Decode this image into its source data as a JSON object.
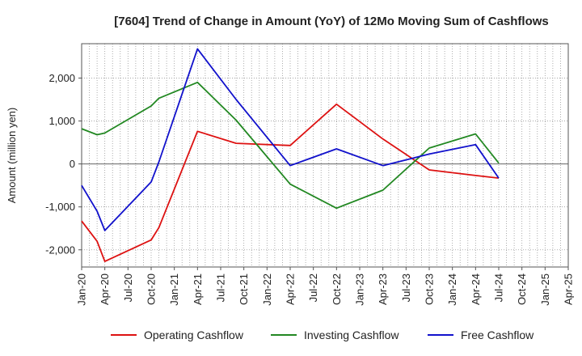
{
  "chart_data": {
    "type": "line",
    "title": "[7604]  Trend of Change in Amount (YoY) of 12Mo Moving Sum of Cashflows",
    "xlabel": "",
    "ylabel": "Amount (million yen)",
    "ylim": [
      -2400,
      2800
    ],
    "yticks": [
      {
        "value": 2000,
        "label": "2,000"
      },
      {
        "value": 1000,
        "label": "1,000"
      },
      {
        "value": 0,
        "label": "0"
      },
      {
        "value": -1000,
        "label": "-1,000"
      },
      {
        "value": -2000,
        "label": "-2,000"
      }
    ],
    "categories": [
      "Jan-20",
      "Apr-20",
      "Jul-20",
      "Oct-20",
      "Jan-21",
      "Apr-21",
      "Jul-21",
      "Oct-21",
      "Jan-22",
      "Apr-22",
      "Jul-22",
      "Oct-22",
      "Jan-23",
      "Apr-23",
      "Jul-23",
      "Oct-23",
      "Jan-24",
      "Apr-24",
      "Jul-24",
      "Oct-24",
      "Jan-25",
      "Apr-25"
    ],
    "grid": true,
    "legend_position": "bottom",
    "series": [
      {
        "name": "Operating Cashflow",
        "color": "#dd1111",
        "points": [
          [
            0,
            -1330
          ],
          [
            2,
            -1800
          ],
          [
            3,
            -2270
          ],
          [
            9,
            -1770
          ],
          [
            10,
            -1480
          ],
          [
            15,
            760
          ],
          [
            20,
            480
          ],
          [
            27,
            430
          ],
          [
            33,
            1390
          ],
          [
            39,
            580
          ],
          [
            45,
            -140
          ],
          [
            51,
            -270
          ],
          [
            54,
            -330
          ]
        ]
      },
      {
        "name": "Investing Cashflow",
        "color": "#228822",
        "points": [
          [
            0,
            820
          ],
          [
            2,
            680
          ],
          [
            3,
            720
          ],
          [
            9,
            1350
          ],
          [
            10,
            1530
          ],
          [
            15,
            1900
          ],
          [
            20,
            1020
          ],
          [
            27,
            -470
          ],
          [
            33,
            -1030
          ],
          [
            39,
            -610
          ],
          [
            45,
            370
          ],
          [
            51,
            700
          ],
          [
            54,
            20
          ]
        ]
      },
      {
        "name": "Free Cashflow",
        "color": "#1111cc",
        "points": [
          [
            0,
            -500
          ],
          [
            2,
            -1100
          ],
          [
            3,
            -1550
          ],
          [
            9,
            -420
          ],
          [
            10,
            50
          ],
          [
            15,
            2680
          ],
          [
            20,
            1500
          ],
          [
            27,
            -40
          ],
          [
            33,
            350
          ],
          [
            39,
            -40
          ],
          [
            45,
            230
          ],
          [
            51,
            450
          ],
          [
            54,
            -330
          ]
        ]
      }
    ]
  }
}
